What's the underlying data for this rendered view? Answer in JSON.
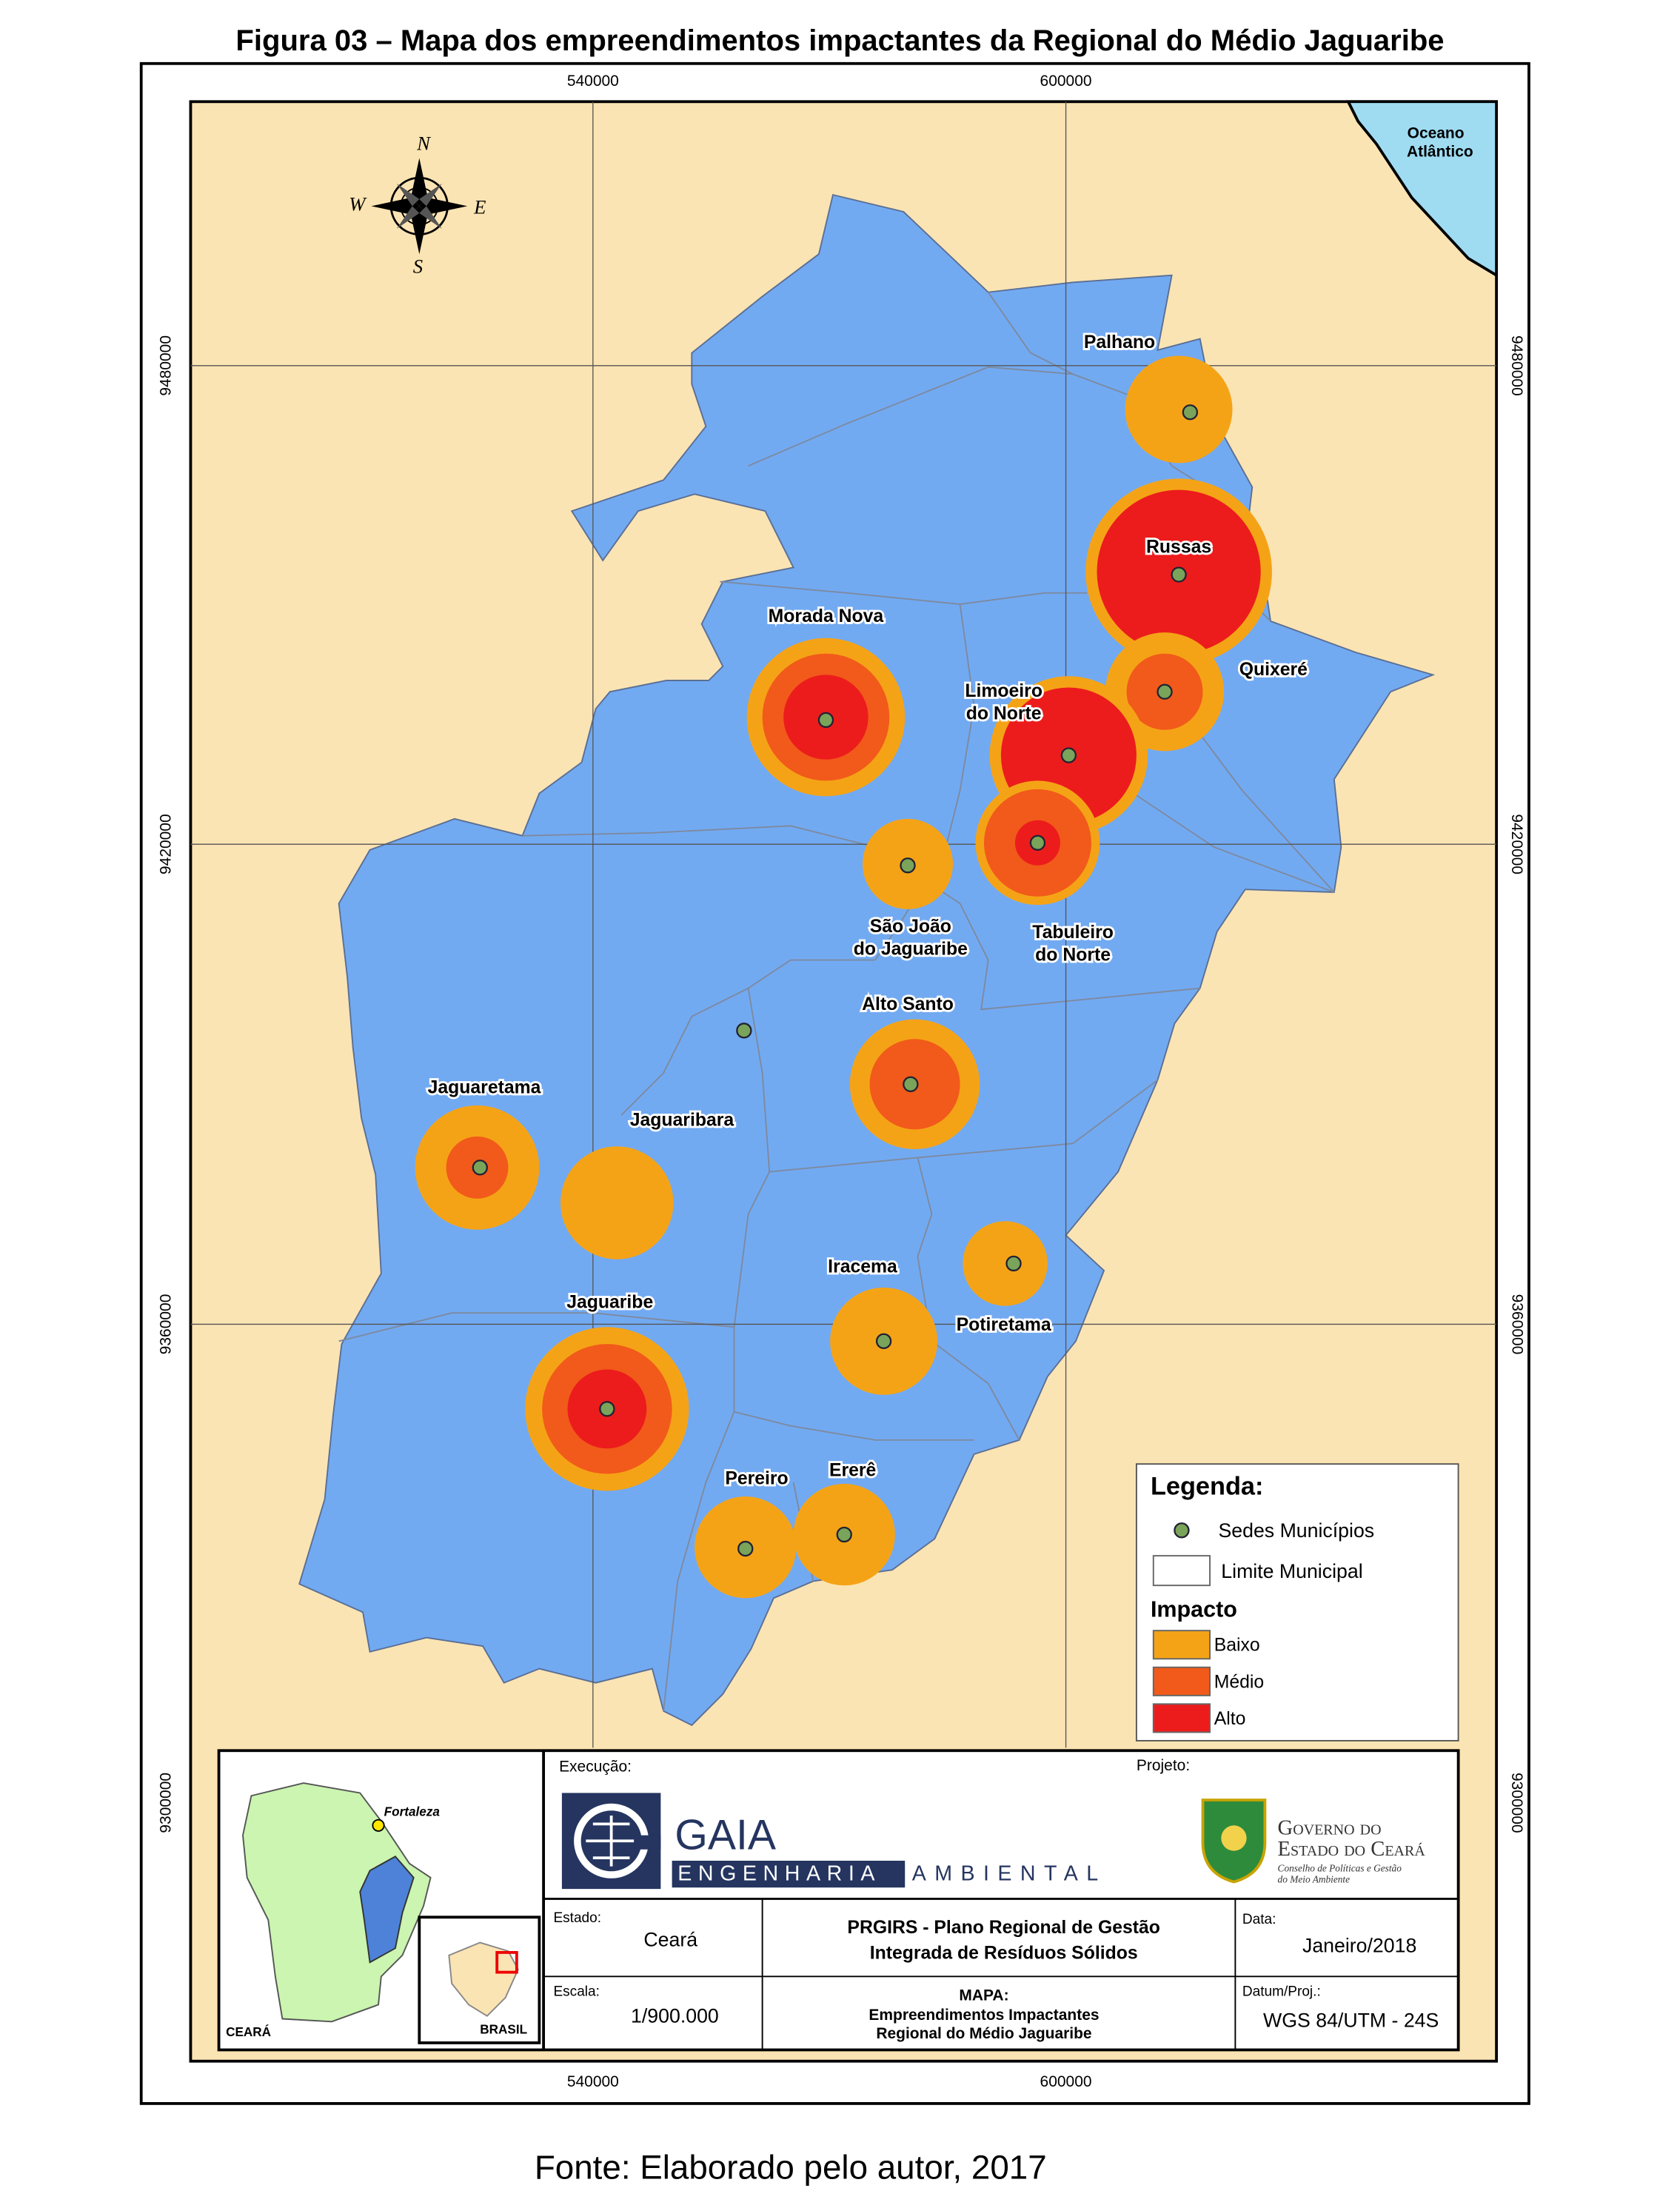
{
  "title": "Figura 03 – Mapa dos empreendimentos impactantes da Regional do Médio Jaguaribe",
  "source": "Fonte: Elaborado pelo autor, 2017",
  "grid": {
    "x_labels": [
      "540000",
      "600000"
    ],
    "y_labels": [
      "9480000",
      "9420000",
      "9360000",
      "9300000"
    ]
  },
  "compass": {
    "n": "N",
    "w": "W",
    "e": "E",
    "s": "S"
  },
  "ocean": [
    "Oceano",
    "Atlântico"
  ],
  "municipalities": [
    {
      "lines": [
        "Palhano"
      ]
    },
    {
      "lines": [
        "Russas"
      ]
    },
    {
      "lines": [
        "Quixeré"
      ]
    },
    {
      "lines": [
        "Morada Nova"
      ]
    },
    {
      "lines": [
        "Limoeiro",
        "do Norte"
      ]
    },
    {
      "lines": [
        "São João",
        "do Jaguaribe"
      ]
    },
    {
      "lines": [
        "Tabuleiro",
        "do Norte"
      ]
    },
    {
      "lines": [
        "Alto Santo"
      ]
    },
    {
      "lines": [
        "Jaguaretama"
      ]
    },
    {
      "lines": [
        "Jaguaribara"
      ]
    },
    {
      "lines": [
        "Iracema"
      ]
    },
    {
      "lines": [
        "Potiretama"
      ]
    },
    {
      "lines": [
        "Jaguaribe"
      ]
    },
    {
      "lines": [
        "Pereiro"
      ]
    },
    {
      "lines": [
        "Ererê"
      ]
    }
  ],
  "legend": {
    "title": "Legenda:",
    "seats": "Sedes Municípios",
    "limit": "Limite Municipal",
    "impact_title": "Impacto",
    "levels": [
      {
        "label": "Baixo",
        "color": "#f5a316"
      },
      {
        "label": "Médio",
        "color": "#f15a1a"
      },
      {
        "label": "Alto",
        "color": "#ec1c1c"
      }
    ]
  },
  "inset": {
    "city": "Fortaleza",
    "state": "CEARÁ",
    "country": "BRASIL"
  },
  "title_block": {
    "execution": "Execução:",
    "project": "Projeto:",
    "gaia": "GAIA",
    "engenharia": "ENGENHARIA",
    "ambiental": "AMBIENTAL",
    "gov_1": "Governo do",
    "gov_2": "Estado do Ceará",
    "gov_3": "Conselho de Políticas e Gestão",
    "gov_4": "do Meio Ambiente",
    "state_label": "Estado:",
    "state": "Ceará",
    "plan_1": "PRGIRS - Plano Regional de Gestão",
    "plan_2": "Integrada de Resíduos Sólidos",
    "date_label": "Data:",
    "date": "Janeiro/2018",
    "scale_label": "Escala:",
    "scale": "1/900.000",
    "map_label": "MAPA:",
    "map_1": "Empreendimentos Impactantes",
    "map_2": "Regional do Médio Jaguaribe",
    "datum_label": "Datum/Proj.:",
    "datum": "WGS 84/UTM - 24S"
  }
}
